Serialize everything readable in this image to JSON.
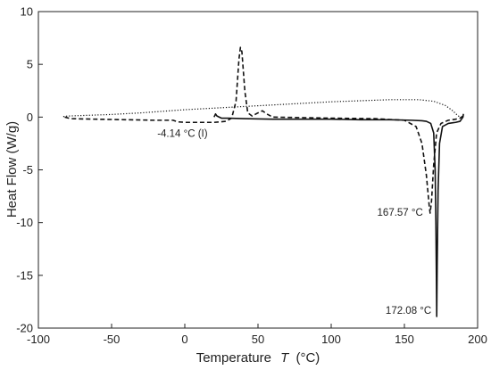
{
  "chart_data": {
    "type": "line",
    "title": "",
    "xlabel": "Temperature",
    "xlabel_symbol": "T",
    "xlabel_unit": "(°C)",
    "ylabel": "Heat Flow (W/g)",
    "xlim": [
      -100,
      200
    ],
    "ylim": [
      -20,
      10
    ],
    "x_ticks": [
      -100,
      -50,
      0,
      50,
      100,
      150,
      200
    ],
    "y_ticks": [
      10,
      5,
      0,
      -5,
      -10,
      -15,
      -20
    ],
    "grid": false,
    "legend": "none",
    "series": [
      {
        "style": "dotted",
        "points": [
          [
            -83,
            0.05
          ],
          [
            -80,
            0.1
          ],
          [
            -70,
            0.15
          ],
          [
            -50,
            0.25
          ],
          [
            -30,
            0.4
          ],
          [
            -10,
            0.6
          ],
          [
            0,
            0.7
          ],
          [
            20,
            0.85
          ],
          [
            40,
            1.0
          ],
          [
            60,
            1.15
          ],
          [
            80,
            1.3
          ],
          [
            100,
            1.45
          ],
          [
            120,
            1.55
          ],
          [
            140,
            1.65
          ],
          [
            160,
            1.65
          ],
          [
            170,
            1.5
          ],
          [
            178,
            1.1
          ],
          [
            183,
            0.6
          ],
          [
            186,
            0.2
          ],
          [
            188,
            0.0
          ]
        ]
      },
      {
        "style": "dashed",
        "points": [
          [
            -82,
            0.0
          ],
          [
            -78,
            -0.15
          ],
          [
            -60,
            -0.2
          ],
          [
            -40,
            -0.25
          ],
          [
            -20,
            -0.3
          ],
          [
            -8,
            -0.3
          ],
          [
            -5,
            -0.45
          ],
          [
            0,
            -0.5
          ],
          [
            10,
            -0.5
          ],
          [
            20,
            -0.5
          ],
          [
            28,
            -0.4
          ],
          [
            32,
            -0.1
          ],
          [
            35,
            1.5
          ],
          [
            37,
            5.5
          ],
          [
            38,
            6.6
          ],
          [
            39,
            6.2
          ],
          [
            41,
            2.5
          ],
          [
            43,
            0.4
          ],
          [
            46,
            0.1
          ],
          [
            50,
            0.4
          ],
          [
            53,
            0.6
          ],
          [
            56,
            0.3
          ],
          [
            60,
            0.0
          ],
          [
            80,
            -0.05
          ],
          [
            100,
            -0.1
          ],
          [
            130,
            -0.15
          ],
          [
            150,
            -0.3
          ],
          [
            158,
            -0.9
          ],
          [
            162,
            -2.5
          ],
          [
            165,
            -5.5
          ],
          [
            167,
            -8.5
          ],
          [
            167.57,
            -9.1
          ],
          [
            168.5,
            -8.0
          ],
          [
            170,
            -4.5
          ],
          [
            172,
            -1.5
          ],
          [
            175,
            -0.6
          ],
          [
            180,
            -0.3
          ],
          [
            185,
            -0.2
          ],
          [
            188,
            -0.1
          ],
          [
            190,
            0.1
          ]
        ]
      },
      {
        "style": "solid",
        "points": [
          [
            20,
            0.0
          ],
          [
            21,
            0.3
          ],
          [
            22,
            0.1
          ],
          [
            25,
            -0.1
          ],
          [
            30,
            -0.1
          ],
          [
            40,
            -0.15
          ],
          [
            60,
            -0.2
          ],
          [
            80,
            -0.2
          ],
          [
            100,
            -0.2
          ],
          [
            120,
            -0.25
          ],
          [
            140,
            -0.25
          ],
          [
            155,
            -0.3
          ],
          [
            162,
            -0.35
          ],
          [
            165,
            -0.4
          ],
          [
            168,
            -0.6
          ],
          [
            170,
            -1.5
          ],
          [
            171,
            -5.0
          ],
          [
            171.5,
            -10.0
          ],
          [
            171.8,
            -14.5
          ],
          [
            172.08,
            -18.9
          ],
          [
            172.4,
            -14.0
          ],
          [
            173,
            -7.0
          ],
          [
            174,
            -2.5
          ],
          [
            176,
            -0.9
          ],
          [
            180,
            -0.6
          ],
          [
            185,
            -0.5
          ],
          [
            188,
            -0.4
          ],
          [
            190,
            0.0
          ],
          [
            190.3,
            0.3
          ]
        ]
      }
    ],
    "annotations": [
      {
        "text": "-4.14 °C (I)",
        "x": -4.14,
        "y": -0.45
      },
      {
        "text": "167.57 °C",
        "x": 167.57,
        "y": -9.1
      },
      {
        "text": "172.08 °C",
        "x": 172.08,
        "y": -18.9
      }
    ]
  }
}
